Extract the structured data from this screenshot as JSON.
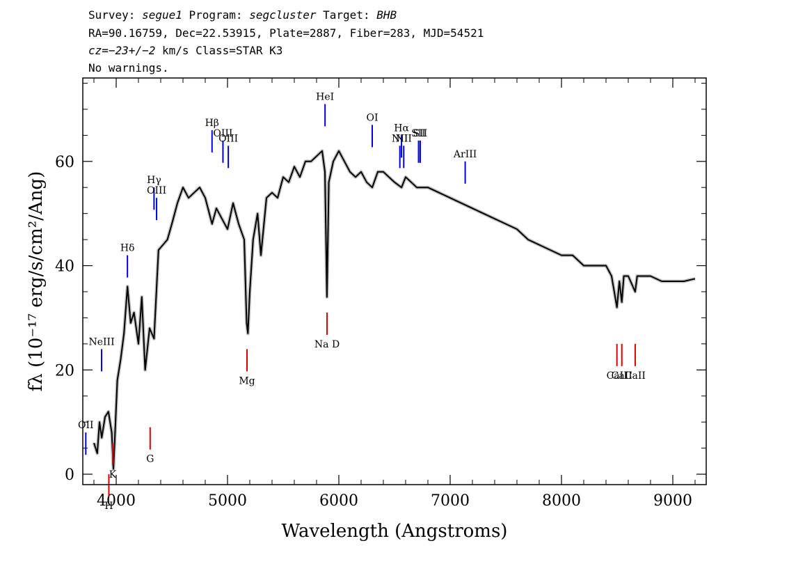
{
  "header": {
    "line1": {
      "survey_label": "Survey: ",
      "survey": "segue1",
      "program_label": " Program: ",
      "program": "segcluster",
      "target_label": " Target: ",
      "target": "BHB"
    },
    "line2": "RA=90.16759, Dec=22.53915, Plate=2887, Fiber=283, MJD=54521",
    "line3": {
      "cz_label": "cz=",
      "cz": "−23+/−2",
      "rest": " km/s Class=STAR K3"
    },
    "line4": "No warnings."
  },
  "chart_data": {
    "type": "line",
    "xlabel": "Wavelength (Angstroms)",
    "ylabel": "fλ (10⁻¹⁷ erg/s/cm²/Ang)",
    "xlim": [
      3700,
      9300
    ],
    "ylim": [
      -2,
      76
    ],
    "xticks": [
      "4000",
      "5000",
      "6000",
      "7000",
      "8000",
      "9000"
    ],
    "yticks": [
      "0",
      "20",
      "40",
      "60"
    ],
    "series": [
      {
        "color": "#000000",
        "x": [
          3800,
          3830,
          3850,
          3870,
          3900,
          3930,
          3960,
          3975,
          3990,
          4010,
          4040,
          4070,
          4101,
          4130,
          4160,
          4200,
          4230,
          4260,
          4300,
          4340,
          4380,
          4420,
          4460,
          4500,
          4550,
          4600,
          4650,
          4700,
          4750,
          4800,
          4861,
          4900,
          4950,
          5000,
          5050,
          5100,
          5150,
          5172,
          5183,
          5200,
          5230,
          5270,
          5300,
          5350,
          5400,
          5450,
          5500,
          5550,
          5600,
          5650,
          5700,
          5750,
          5800,
          5850,
          5875,
          5893,
          5910,
          5950,
          6000,
          6050,
          6100,
          6150,
          6200,
          6250,
          6300,
          6350,
          6400,
          6450,
          6500,
          6563,
          6600,
          6650,
          6700,
          6800,
          6900,
          7000,
          7100,
          7200,
          7300,
          7400,
          7500,
          7600,
          7700,
          7800,
          7900,
          8000,
          8100,
          8200,
          8300,
          8400,
          8450,
          8498,
          8520,
          8542,
          8560,
          8600,
          8662,
          8680,
          8700,
          8800,
          8900,
          9000,
          9100,
          9200
        ],
        "y": [
          6,
          4,
          10,
          7,
          11,
          12,
          8,
          1,
          8,
          18,
          22,
          27,
          36,
          29,
          31,
          25,
          34,
          20,
          28,
          26,
          43,
          44,
          45,
          48,
          52,
          55,
          53,
          54,
          55,
          53,
          48,
          51,
          49,
          47,
          52,
          48,
          45,
          29,
          27,
          35,
          45,
          50,
          42,
          53,
          54,
          53,
          57,
          56,
          59,
          57,
          60,
          60,
          61,
          62,
          58,
          34,
          56,
          60,
          62,
          60,
          58,
          57,
          58,
          56,
          55,
          58,
          58,
          57,
          56,
          55,
          57,
          56,
          55,
          55,
          54,
          53,
          52,
          51,
          50,
          49,
          48,
          47,
          45,
          44,
          43,
          42,
          42,
          40,
          40,
          40,
          38,
          32,
          37,
          33,
          38,
          38,
          35,
          38,
          38,
          38,
          37,
          37,
          37,
          37.5
        ]
      }
    ],
    "lines_blue": [
      {
        "label": "OII",
        "x": 3727,
        "y": 8
      },
      {
        "label": "NeIII",
        "x": 3869,
        "y": 24
      },
      {
        "label": "Hδ",
        "x": 4101,
        "y": 42
      },
      {
        "label": "Hγ",
        "x": 4340,
        "y": 55
      },
      {
        "label": "OIII",
        "x": 4363,
        "y": 53
      },
      {
        "label": "Hβ",
        "x": 4861,
        "y": 66
      },
      {
        "label": "OIII",
        "x": 4959,
        "y": 64
      },
      {
        "label": "OIII",
        "x": 5007,
        "y": 63
      },
      {
        "label": "HeI",
        "x": 5876,
        "y": 71
      },
      {
        "label": "OI",
        "x": 6300,
        "y": 67
      },
      {
        "label": "NII",
        "x": 6548,
        "y": 63
      },
      {
        "label": "Hα",
        "x": 6563,
        "y": 65
      },
      {
        "label": "NII",
        "x": 6583,
        "y": 63
      },
      {
        "label": "SII",
        "x": 6716,
        "y": 64
      },
      {
        "label": "SII",
        "x": 6731,
        "y": 64
      },
      {
        "label": "ArIII",
        "x": 7135,
        "y": 60
      }
    ],
    "lines_red": [
      {
        "label": "H",
        "x": 3934,
        "y": 0
      },
      {
        "label": "K",
        "x": 3969,
        "y": 6
      },
      {
        "label": "G",
        "x": 4305,
        "y": 9
      },
      {
        "label": "Mg",
        "x": 5175,
        "y": 24
      },
      {
        "label": "Na D",
        "x": 5894,
        "y": 31
      },
      {
        "label": "CaII",
        "x": 8498,
        "y": 25
      },
      {
        "label": "CaII",
        "x": 8542,
        "y": 25
      },
      {
        "label": "CaII",
        "x": 8662,
        "y": 25
      }
    ],
    "line_colors": {
      "blue": "#0000dd",
      "red": "#dd0000",
      "spectrum": "#000000",
      "error_band": "#b0b0b0"
    }
  }
}
